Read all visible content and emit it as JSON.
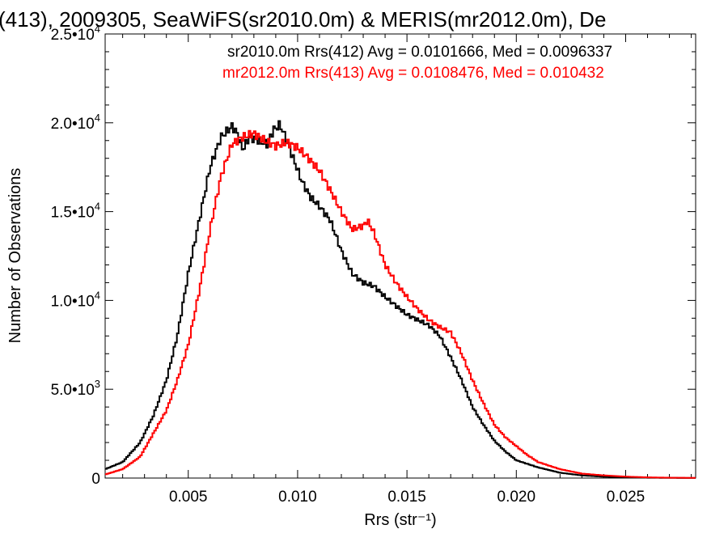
{
  "chart_data": {
    "type": "line",
    "title": "(413), 2009305, SeaWiFS(sr2010.0m) & MERIS(mr2012.0m), De",
    "xlabel": "Rrs (str⁻¹)",
    "ylabel": "Number of Observations",
    "xlim": [
      0.0012,
      0.0282
    ],
    "ylim": [
      0,
      25000
    ],
    "x_ticks": [
      {
        "value": 0.005,
        "label": "0.005"
      },
      {
        "value": 0.01,
        "label": "0.010"
      },
      {
        "value": 0.015,
        "label": "0.015"
      },
      {
        "value": 0.02,
        "label": "0.020"
      },
      {
        "value": 0.025,
        "label": "0.025"
      }
    ],
    "y_ticks": [
      {
        "value": 0,
        "mant": "0",
        "exp": ""
      },
      {
        "value": 5000,
        "mant": "5.0•10",
        "exp": "3"
      },
      {
        "value": 10000,
        "mant": "1.0•10",
        "exp": "4"
      },
      {
        "value": 15000,
        "mant": "1.5•10",
        "exp": "4"
      },
      {
        "value": 20000,
        "mant": "2.0•10",
        "exp": "4"
      },
      {
        "value": 25000,
        "mant": "2.5•10",
        "exp": "4"
      }
    ],
    "grid": false,
    "legend_position": "top-right",
    "series": [
      {
        "name": "sr2010.0m Rrs(412) Avg = 0.0101666, Med = 0.0096337",
        "color": "#000000",
        "x": [
          0.0012,
          0.002,
          0.0028,
          0.0034,
          0.004,
          0.0045,
          0.005,
          0.0055,
          0.006,
          0.0065,
          0.007,
          0.0072,
          0.0075,
          0.0078,
          0.0082,
          0.0086,
          0.0089,
          0.0092,
          0.0095,
          0.0098,
          0.0102,
          0.0106,
          0.011,
          0.0115,
          0.012,
          0.0125,
          0.013,
          0.0135,
          0.014,
          0.015,
          0.016,
          0.0165,
          0.017,
          0.0175,
          0.018,
          0.0185,
          0.019,
          0.0195,
          0.02,
          0.021,
          0.022,
          0.023,
          0.024,
          0.025,
          0.026,
          0.027,
          0.0282
        ],
        "y": [
          500,
          900,
          2000,
          3500,
          5500,
          8000,
          11500,
          14500,
          17500,
          19200,
          19800,
          19500,
          18500,
          19200,
          19000,
          18800,
          19600,
          19900,
          19000,
          18000,
          16700,
          15800,
          15300,
          14500,
          12800,
          11500,
          11000,
          10800,
          10200,
          9200,
          8600,
          8000,
          6800,
          5500,
          4000,
          3000,
          2100,
          1500,
          1000,
          600,
          300,
          150,
          80,
          40,
          20,
          10,
          5
        ]
      },
      {
        "name": "mr2012.0m Rrs(413) Avg = 0.0108476, Med = 0.010432",
        "color": "#ff0000",
        "x": [
          0.0012,
          0.002,
          0.0028,
          0.0034,
          0.004,
          0.0045,
          0.005,
          0.0055,
          0.006,
          0.0065,
          0.007,
          0.0075,
          0.008,
          0.0085,
          0.009,
          0.0095,
          0.01,
          0.0105,
          0.011,
          0.0115,
          0.012,
          0.0125,
          0.013,
          0.0132,
          0.0135,
          0.014,
          0.0145,
          0.015,
          0.0155,
          0.016,
          0.0165,
          0.017,
          0.0175,
          0.018,
          0.0185,
          0.019,
          0.0195,
          0.02,
          0.0205,
          0.021,
          0.022,
          0.023,
          0.024,
          0.025,
          0.026,
          0.027,
          0.0282
        ],
        "y": [
          200,
          500,
          1200,
          2500,
          3800,
          5500,
          7500,
          10500,
          14000,
          17000,
          18800,
          19200,
          19400,
          19000,
          18700,
          18900,
          18600,
          18000,
          17300,
          16200,
          15000,
          14000,
          14200,
          14500,
          13800,
          12000,
          11000,
          10200,
          9500,
          8900,
          8500,
          8200,
          7000,
          5500,
          4200,
          3000,
          2300,
          1800,
          1300,
          900,
          500,
          250,
          150,
          80,
          40,
          20,
          10
        ]
      }
    ]
  }
}
